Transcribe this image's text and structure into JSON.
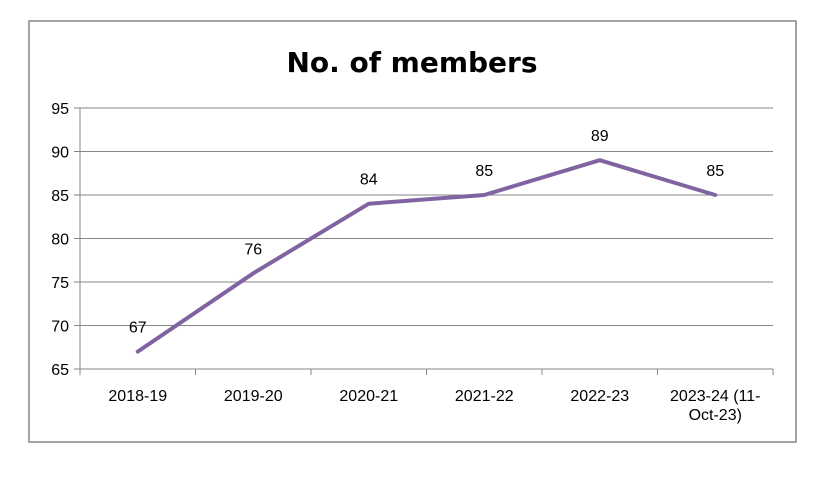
{
  "chart_data": {
    "type": "line",
    "title": "No. of members",
    "xlabel": "",
    "ylabel": "",
    "categories": [
      "2018-19",
      "2019-20",
      "2020-21",
      "2021-22",
      "2022-23",
      "2023-24 (11-Oct-23)"
    ],
    "category_lines": [
      [
        "2018-19"
      ],
      [
        "2019-20"
      ],
      [
        "2020-21"
      ],
      [
        "2021-22"
      ],
      [
        "2022-23"
      ],
      [
        "2023-24 (11-",
        "Oct-23)"
      ]
    ],
    "series": [
      {
        "values": [
          67,
          76,
          84,
          85,
          89,
          85
        ],
        "color": "#8064a2"
      }
    ],
    "ylim": [
      65,
      95
    ],
    "yticks": [
      65,
      70,
      75,
      80,
      85,
      90,
      95
    ],
    "grid": true,
    "legend": "none",
    "data_labels": true
  }
}
